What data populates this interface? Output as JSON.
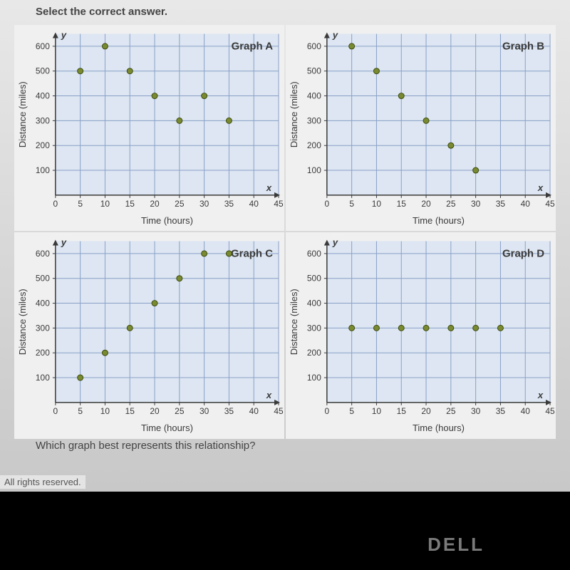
{
  "instruction": "Select the correct answer.",
  "question": "Which graph best represents this relationship?",
  "rights_text": "All rights reserved.",
  "logo_text": "DELL",
  "axis_label_x": "Time (hours)",
  "axis_label_y": "Distance (miles)",
  "xvar": "x",
  "yvar": "y",
  "chart_common": {
    "xlim": [
      0,
      45
    ],
    "ylim": [
      0,
      650
    ],
    "xtick_step": 5,
    "xtick_labels": [
      0,
      5,
      10,
      15,
      20,
      25,
      30,
      35,
      40,
      45
    ],
    "ytick_step": 100,
    "ytick_labels": [
      100,
      200,
      300,
      400,
      500,
      600
    ],
    "grid_color": "#8aa0c8",
    "grid_bg": "#dde6f2",
    "panel_bg": "#f0f0f0",
    "axis_color": "#3a3a3a",
    "tick_font_size": 12,
    "label_font_size": 13,
    "point_radius": 4,
    "point_fill": "#7a8a30",
    "point_stroke": "#3a4a10"
  },
  "charts": [
    {
      "label": "Graph A",
      "points": [
        [
          5,
          500
        ],
        [
          10,
          600
        ],
        [
          15,
          500
        ],
        [
          20,
          400
        ],
        [
          25,
          300
        ],
        [
          30,
          400
        ],
        [
          35,
          300
        ]
      ]
    },
    {
      "label": "Graph B",
      "points": [
        [
          5,
          600
        ],
        [
          10,
          500
        ],
        [
          15,
          400
        ],
        [
          20,
          300
        ],
        [
          25,
          200
        ],
        [
          30,
          100
        ]
      ]
    },
    {
      "label": "Graph C",
      "points": [
        [
          5,
          100
        ],
        [
          10,
          200
        ],
        [
          15,
          300
        ],
        [
          20,
          400
        ],
        [
          25,
          500
        ],
        [
          30,
          600
        ],
        [
          35,
          600
        ]
      ]
    },
    {
      "label": "Graph D",
      "points": [
        [
          5,
          300
        ],
        [
          10,
          300
        ],
        [
          15,
          300
        ],
        [
          20,
          300
        ],
        [
          25,
          300
        ],
        [
          30,
          300
        ],
        [
          35,
          300
        ]
      ]
    }
  ]
}
